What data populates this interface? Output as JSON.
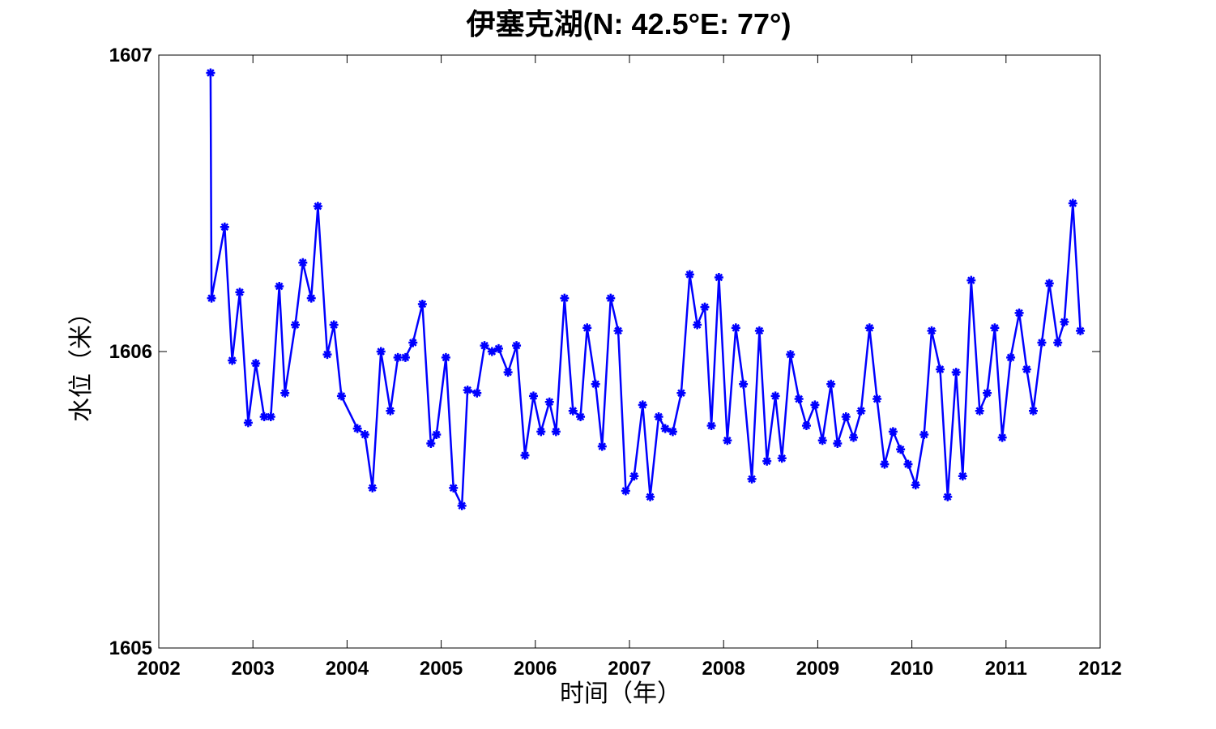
{
  "chart_data": {
    "type": "line",
    "title": "伊塞克湖(N: 42.5°E: 77°)",
    "xlabel": "时间（年）",
    "ylabel": "水位（米）",
    "xlim": [
      2002,
      2012
    ],
    "ylim": [
      1605,
      1607
    ],
    "xticks": [
      2002,
      2003,
      2004,
      2005,
      2006,
      2007,
      2008,
      2009,
      2010,
      2011,
      2012
    ],
    "yticks": [
      1605,
      1606,
      1607
    ],
    "grid": false,
    "line_color": "#0000ff",
    "marker": "asterisk",
    "series": [
      {
        "x": [
          2002.55,
          2002.56,
          2002.7,
          2002.78,
          2002.86,
          2002.95,
          2003.03,
          2003.12,
          2003.19,
          2003.28,
          2003.34,
          2003.45,
          2003.53,
          2003.62,
          2003.69,
          2003.79,
          2003.86,
          2003.94,
          2004.11,
          2004.19,
          2004.27,
          2004.36,
          2004.46,
          2004.54,
          2004.62,
          2004.7,
          2004.8,
          2004.89,
          2004.95,
          2005.05,
          2005.13,
          2005.22,
          2005.28,
          2005.38,
          2005.46,
          2005.54,
          2005.61,
          2005.71,
          2005.8,
          2005.89,
          2005.98,
          2006.06,
          2006.15,
          2006.22,
          2006.31,
          2006.4,
          2006.48,
          2006.55,
          2006.64,
          2006.71,
          2006.8,
          2006.88,
          2006.96,
          2007.05,
          2007.14,
          2007.22,
          2007.31,
          2007.38,
          2007.46,
          2007.55,
          2007.64,
          2007.72,
          2007.8,
          2007.87,
          2007.95,
          2008.04,
          2008.13,
          2008.21,
          2008.3,
          2008.38,
          2008.46,
          2008.55,
          2008.62,
          2008.71,
          2008.8,
          2008.88,
          2008.97,
          2009.05,
          2009.14,
          2009.21,
          2009.3,
          2009.38,
          2009.46,
          2009.55,
          2009.63,
          2009.71,
          2009.8,
          2009.88,
          2009.96,
          2010.04,
          2010.13,
          2010.21,
          2010.3,
          2010.38,
          2010.47,
          2010.54,
          2010.63,
          2010.72,
          2010.8,
          2010.88,
          2010.96,
          2011.05,
          2011.14,
          2011.22,
          2011.29,
          2011.38,
          2011.46,
          2011.55,
          2011.62,
          2011.71,
          2011.79
        ],
        "y": [
          1606.94,
          1606.18,
          1606.42,
          1605.97,
          1606.2,
          1605.76,
          1605.96,
          1605.78,
          1605.78,
          1606.22,
          1605.86,
          1606.09,
          1606.3,
          1606.18,
          1606.49,
          1605.99,
          1606.09,
          1605.85,
          1605.74,
          1605.72,
          1605.54,
          1606.0,
          1605.8,
          1605.98,
          1605.98,
          1606.03,
          1606.16,
          1605.69,
          1605.72,
          1605.98,
          1605.54,
          1605.48,
          1605.87,
          1605.86,
          1606.02,
          1606.0,
          1606.01,
          1605.93,
          1606.02,
          1605.65,
          1605.85,
          1605.73,
          1605.83,
          1605.73,
          1606.18,
          1605.8,
          1605.78,
          1606.08,
          1605.89,
          1605.68,
          1606.18,
          1606.07,
          1605.53,
          1605.58,
          1605.82,
          1605.51,
          1605.78,
          1605.74,
          1605.73,
          1605.86,
          1606.26,
          1606.09,
          1606.15,
          1605.75,
          1606.25,
          1605.7,
          1606.08,
          1605.89,
          1605.57,
          1606.07,
          1605.63,
          1605.85,
          1605.64,
          1605.99,
          1605.84,
          1605.75,
          1605.82,
          1605.7,
          1605.89,
          1605.69,
          1605.78,
          1605.71,
          1605.8,
          1606.08,
          1605.84,
          1605.62,
          1605.73,
          1605.67,
          1605.62,
          1605.55,
          1605.72,
          1606.07,
          1605.94,
          1605.51,
          1605.93,
          1605.58,
          1606.24,
          1605.8,
          1605.86,
          1606.08,
          1605.71,
          1605.98,
          1606.13,
          1605.94,
          1605.8,
          1606.03,
          1606.23,
          1606.03,
          1606.1,
          1606.5,
          1606.07
        ]
      }
    ]
  }
}
